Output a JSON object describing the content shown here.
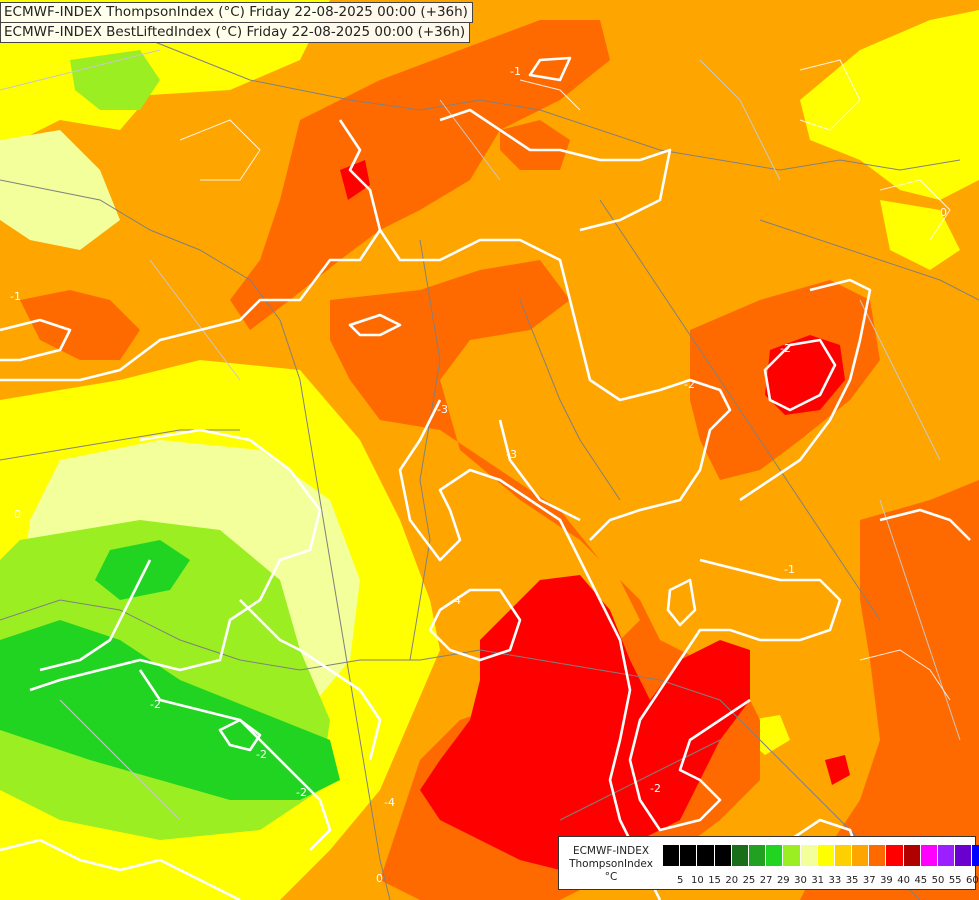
{
  "titles": {
    "line1": "ECMWF-INDEX ThompsonIndex (°C) Friday 22-08-2025 00:00 (+36h)",
    "line2": "ECMWF-INDEX BestLiftedIndex (°C) Friday 22-08-2025 00:00 (+36h)"
  },
  "legend": {
    "line1": "ECMWF-INDEX",
    "line2": "ThompsonIndex",
    "unit": "°C",
    "ticks": [
      "5",
      "10",
      "15",
      "20",
      "25",
      "27",
      "29",
      "30",
      "31",
      "33",
      "35",
      "37",
      "39",
      "40",
      "45",
      "50",
      "55",
      "60"
    ],
    "colors": [
      "#000000",
      "#000000",
      "#000000",
      "#000000",
      "#1a6e1a",
      "#22a022",
      "#22d422",
      "#9aee22",
      "#f2ff9a",
      "#ffff00",
      "#ffd000",
      "#ffa500",
      "#ff6a00",
      "#ff0000",
      "#b00000",
      "#ff00ff",
      "#9c20ff",
      "#6a00d0",
      "#0000ff"
    ]
  },
  "contour_labels": [
    "-1",
    "-1",
    "-2",
    "-2",
    "-3",
    "-3",
    "-4",
    "-4",
    "-2",
    "-2",
    "-2",
    "-2",
    "0",
    "0",
    "-1",
    "0"
  ],
  "colors": {
    "background": "#ffa500",
    "contour": "#ffffff",
    "border": "#808080"
  }
}
